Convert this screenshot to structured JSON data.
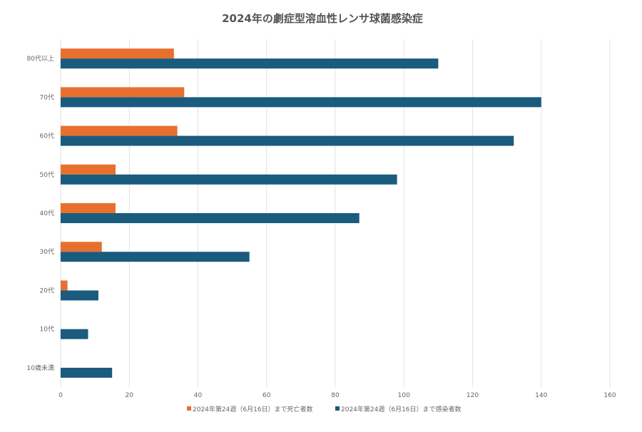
{
  "chart_data": {
    "type": "bar",
    "orientation": "horizontal",
    "title": "2024年の劇症型溶血性レンサ球菌感染症",
    "categories": [
      "80代以上",
      "70代",
      "60代",
      "50代",
      "40代",
      "30代",
      "20代",
      "10代",
      "10歳未満"
    ],
    "series": [
      {
        "name": "2024年第24週（6月16日）まで死亡者数",
        "color": "#e8702e",
        "values": [
          33,
          36,
          34,
          16,
          16,
          12,
          2,
          0,
          0
        ]
      },
      {
        "name": "2024年第24週（6月16日）まで感染者数",
        "color": "#1a5b7e",
        "values": [
          110,
          140,
          132,
          98,
          87,
          55,
          11,
          8,
          15
        ]
      }
    ],
    "xlim": [
      0,
      160
    ],
    "xticks": [
      0,
      20,
      40,
      60,
      80,
      100,
      120,
      140,
      160
    ],
    "grid": true,
    "legend": "bottom",
    "xlabel": "",
    "ylabel": ""
  }
}
